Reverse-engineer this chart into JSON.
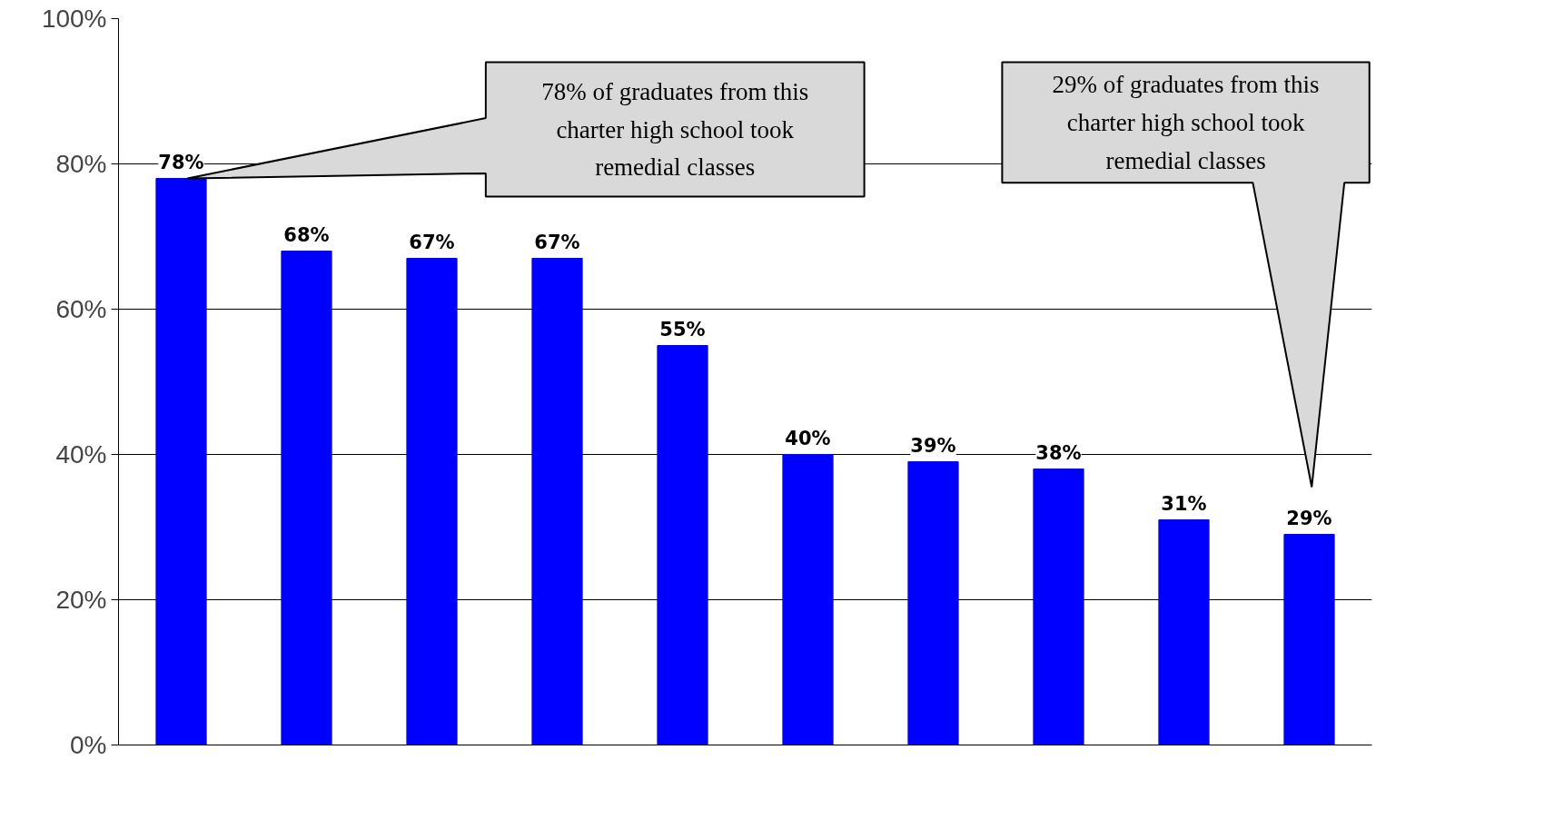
{
  "chart_data": {
    "type": "bar",
    "categories": [
      null,
      null,
      null,
      null,
      null,
      null,
      null,
      null,
      null,
      null
    ],
    "values": [
      78,
      68,
      67,
      67,
      55,
      40,
      39,
      38,
      31,
      29
    ],
    "color": "#0000ff",
    "ylim": [
      0,
      100
    ],
    "yticks": [
      {
        "value": 0,
        "label": "0%"
      },
      {
        "value": 20,
        "label": "20%"
      },
      {
        "value": 40,
        "label": "40%"
      },
      {
        "value": 60,
        "label": "60%"
      },
      {
        "value": 80,
        "label": "80%"
      },
      {
        "value": 100,
        "label": "100%"
      }
    ],
    "value_labels": [
      "78%",
      "68%",
      "67%",
      "67%",
      "55%",
      "40%",
      "39%",
      "38%",
      "31%",
      "29%"
    ],
    "grid": "y",
    "tick_labels": "y",
    "annotations": [
      {
        "text": "78% of graduates from this charter high school took remedial classes"
      },
      {
        "text": "29% of graduates from this charter high school took remedial classes"
      }
    ]
  }
}
